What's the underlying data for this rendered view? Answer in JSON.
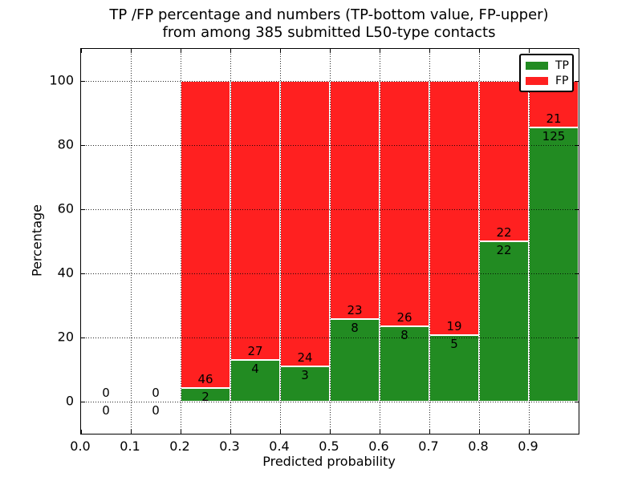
{
  "title": {
    "line1": "TP /FP percentage and numbers (TP-bottom value, FP-upper)",
    "line2": "from among 385 submitted L50-type contacts"
  },
  "colors": {
    "tp_green": "#228b22",
    "fp_red": "#ff2020",
    "axis": "#000000",
    "background": "#ffffff"
  },
  "chart_data": {
    "type": "bar",
    "variant": "stacked-100-percent",
    "title": "TP /FP percentage and numbers (TP-bottom value, FP-upper)\nfrom among 385 submitted L50-type contacts",
    "xlabel": "Predicted probability",
    "ylabel": "Percentage",
    "xlim": [
      0.0,
      1.0
    ],
    "ylim": [
      -10,
      110
    ],
    "bin_width": 0.1,
    "grid": {
      "style": "dotted",
      "drawn_above_bars": true
    },
    "total_contacts": 385,
    "categories": [
      "0.0-0.1",
      "0.1-0.2",
      "0.2-0.3",
      "0.3-0.4",
      "0.4-0.5",
      "0.5-0.6",
      "0.6-0.7",
      "0.7-0.8",
      "0.8-0.9",
      "0.9-1.0"
    ],
    "series": [
      {
        "name": "TP",
        "color": "#228b22",
        "values": [
          0,
          0,
          2,
          4,
          3,
          8,
          8,
          5,
          22,
          125
        ]
      },
      {
        "name": "FP",
        "color": "#ff2020",
        "values": [
          0,
          0,
          46,
          27,
          24,
          23,
          26,
          19,
          22,
          21
        ]
      }
    ],
    "bins": [
      {
        "range": [
          0.0,
          0.1
        ],
        "tp": 0,
        "fp": 0,
        "tp_percent": 0
      },
      {
        "range": [
          0.1,
          0.2
        ],
        "tp": 0,
        "fp": 0,
        "tp_percent": 0
      },
      {
        "range": [
          0.2,
          0.3
        ],
        "tp": 2,
        "fp": 46,
        "tp_percent": 4.2
      },
      {
        "range": [
          0.3,
          0.4
        ],
        "tp": 4,
        "fp": 27,
        "tp_percent": 12.9
      },
      {
        "range": [
          0.4,
          0.5
        ],
        "tp": 3,
        "fp": 24,
        "tp_percent": 11.1
      },
      {
        "range": [
          0.5,
          0.6
        ],
        "tp": 8,
        "fp": 23,
        "tp_percent": 25.8
      },
      {
        "range": [
          0.6,
          0.7
        ],
        "tp": 8,
        "fp": 26,
        "tp_percent": 23.5
      },
      {
        "range": [
          0.7,
          0.8
        ],
        "tp": 5,
        "fp": 19,
        "tp_percent": 20.8
      },
      {
        "range": [
          0.8,
          0.9
        ],
        "tp": 22,
        "fp": 22,
        "tp_percent": 50.0
      },
      {
        "range": [
          0.9,
          1.0
        ],
        "tp": 125,
        "fp": 21,
        "tp_percent": 85.6
      }
    ],
    "bar_label_rule": "FP count printed just above the TP/FP boundary, TP count just below it",
    "x_ticks": [
      {
        "label": "0.0",
        "value": 0.0
      },
      {
        "label": "0.1",
        "value": 0.1
      },
      {
        "label": "0.2",
        "value": 0.2
      },
      {
        "label": "0.3",
        "value": 0.3
      },
      {
        "label": "0.4",
        "value": 0.4
      },
      {
        "label": "0.5",
        "value": 0.5
      },
      {
        "label": "0.6",
        "value": 0.6
      },
      {
        "label": "0.7",
        "value": 0.7
      },
      {
        "label": "0.8",
        "value": 0.8
      },
      {
        "label": "0.9",
        "value": 0.9
      },
      {
        "label": "",
        "value": 1.0
      }
    ],
    "y_ticks": [
      {
        "label": "0",
        "value": 0
      },
      {
        "label": "20",
        "value": 20
      },
      {
        "label": "40",
        "value": 40
      },
      {
        "label": "60",
        "value": 60
      },
      {
        "label": "80",
        "value": 80
      },
      {
        "label": "100",
        "value": 100
      }
    ],
    "legend": {
      "position": "upper-right",
      "entries": [
        {
          "label": "TP",
          "color": "#228b22"
        },
        {
          "label": "FP",
          "color": "#ff2020"
        }
      ]
    }
  }
}
